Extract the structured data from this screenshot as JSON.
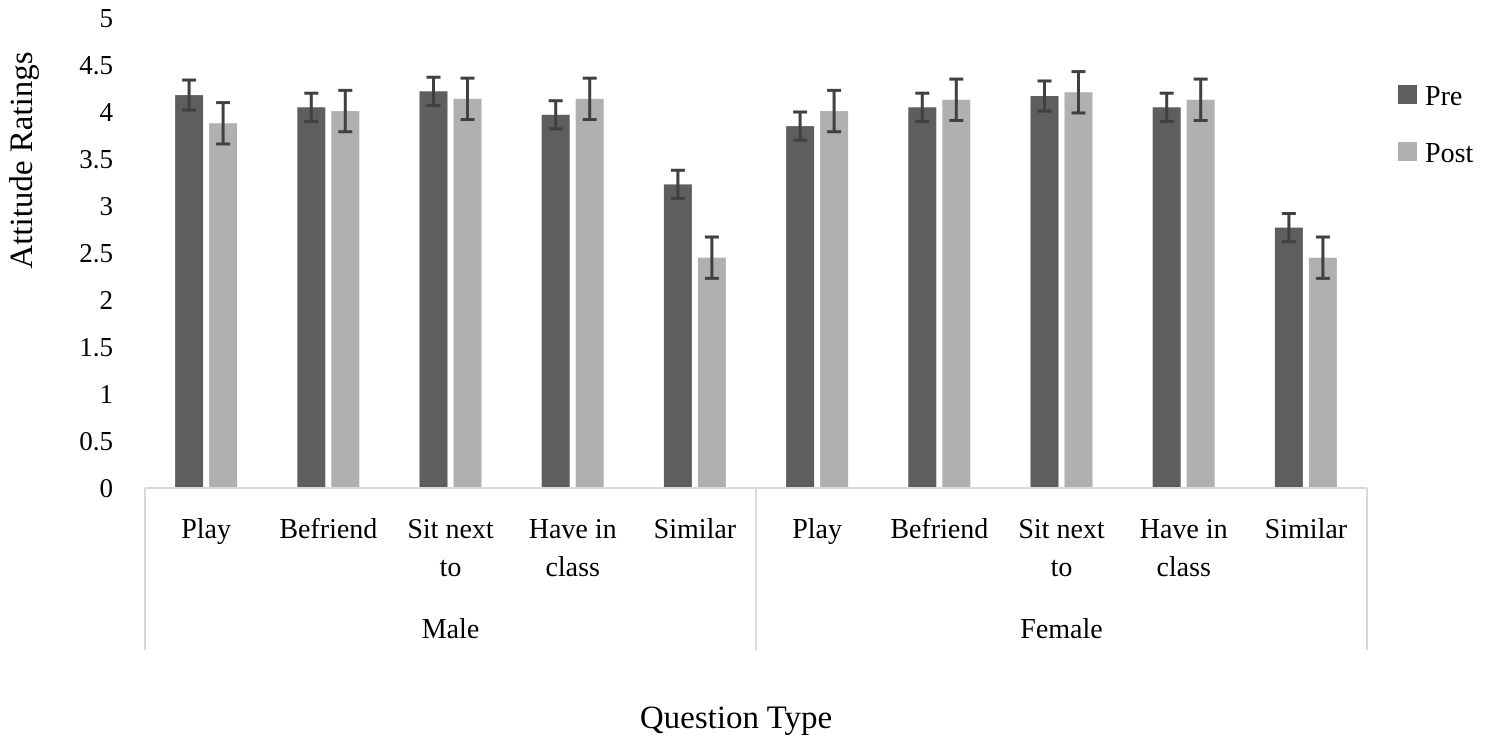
{
  "chart_data": {
    "type": "bar",
    "xlabel": "Question Type",
    "ylabel": "Attitude Ratings",
    "ylim": [
      0,
      5
    ],
    "yticks": [
      "0",
      "0.5",
      "1",
      "1.5",
      "2",
      "2.5",
      "3",
      "3.5",
      "4",
      "4.5",
      "5"
    ],
    "grid": false,
    "legend_position": "right",
    "groups": [
      {
        "label": "Male",
        "categories": [
          [
            "Play"
          ],
          [
            "Befriend"
          ],
          [
            "Sit next",
            "to"
          ],
          [
            "Have in",
            "class"
          ],
          [
            "Similar"
          ]
        ]
      },
      {
        "label": "Female",
        "categories": [
          [
            "Play"
          ],
          [
            "Befriend"
          ],
          [
            "Sit next",
            "to"
          ],
          [
            "Have in",
            "class"
          ],
          [
            "Similar"
          ]
        ]
      }
    ],
    "series": [
      {
        "name": "Pre",
        "color": "#5e5e5e",
        "values": [
          4.18,
          4.05,
          4.22,
          3.97,
          3.23,
          3.85,
          4.05,
          4.17,
          4.05,
          2.77
        ],
        "error": [
          0.16,
          0.15,
          0.15,
          0.15,
          0.15,
          0.15,
          0.15,
          0.16,
          0.15,
          0.15
        ]
      },
      {
        "name": "Post",
        "color": "#b0b0b0",
        "values": [
          3.88,
          4.01,
          4.14,
          4.14,
          2.45,
          4.01,
          4.13,
          4.21,
          4.13,
          2.45
        ],
        "error": [
          0.22,
          0.22,
          0.22,
          0.22,
          0.22,
          0.22,
          0.22,
          0.22,
          0.22,
          0.22
        ]
      }
    ],
    "error_bar_color": "#404040",
    "axis_line_color": "#d9d9d9"
  }
}
